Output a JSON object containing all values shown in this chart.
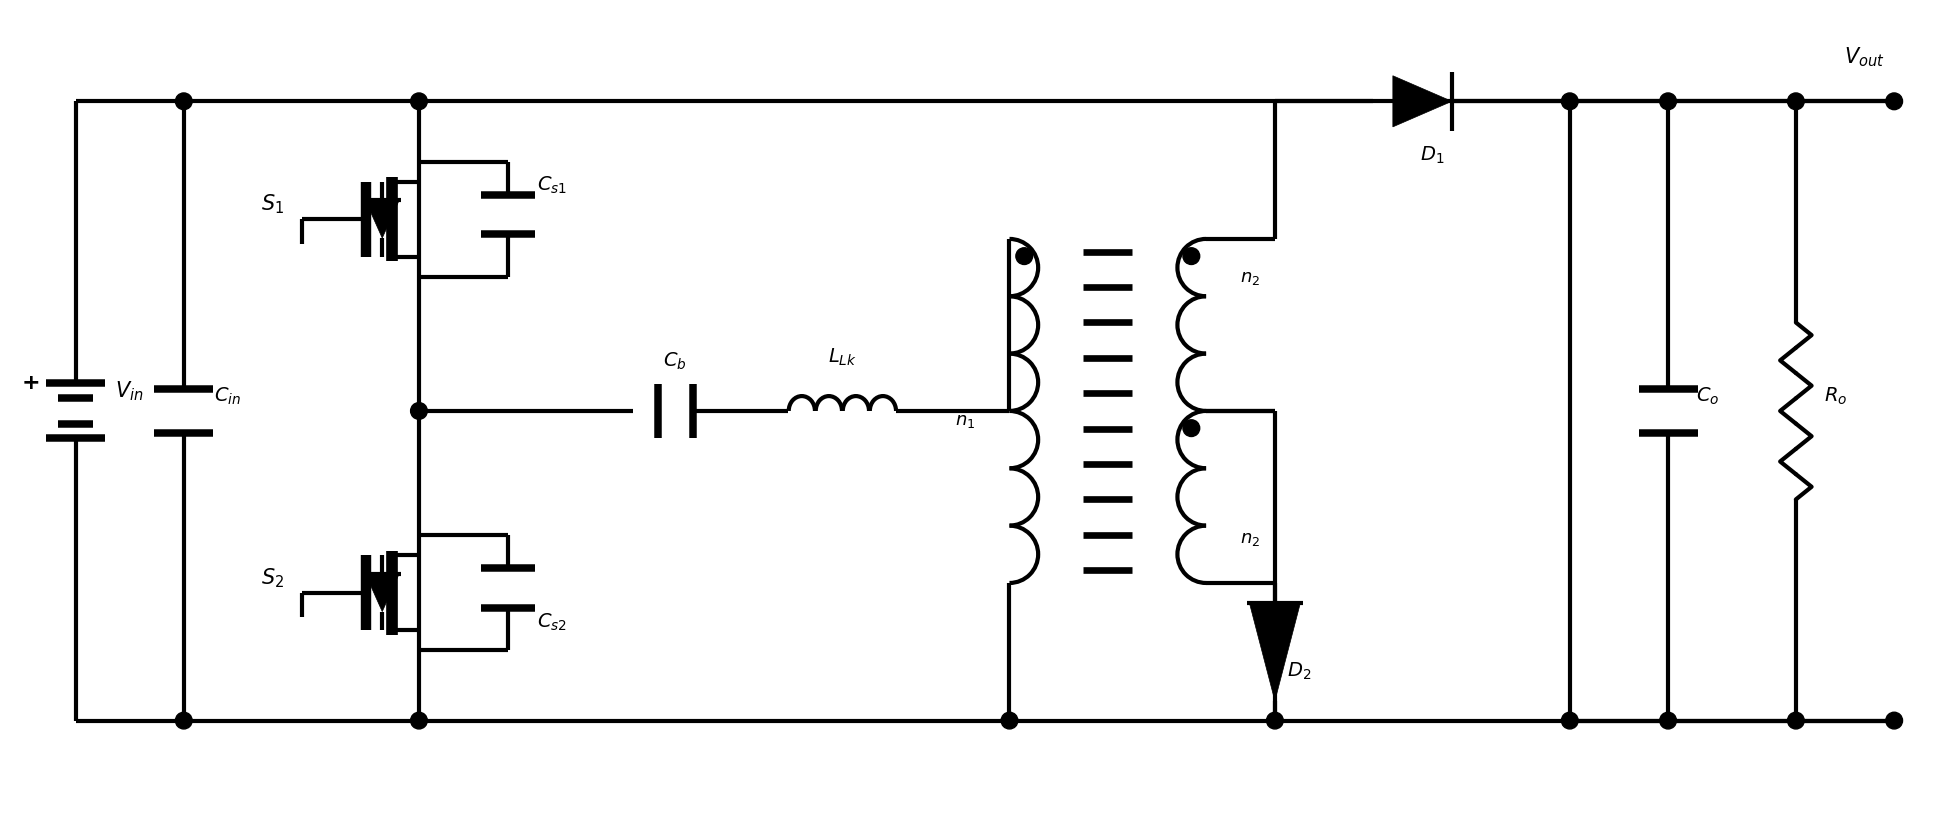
{
  "figsize": [
    19.6,
    8.16
  ],
  "dpi": 100,
  "bg_color": "#ffffff",
  "lc": "#000000",
  "lw": 3.0,
  "xlim": [
    0,
    196
  ],
  "ylim": [
    0,
    81.6
  ]
}
